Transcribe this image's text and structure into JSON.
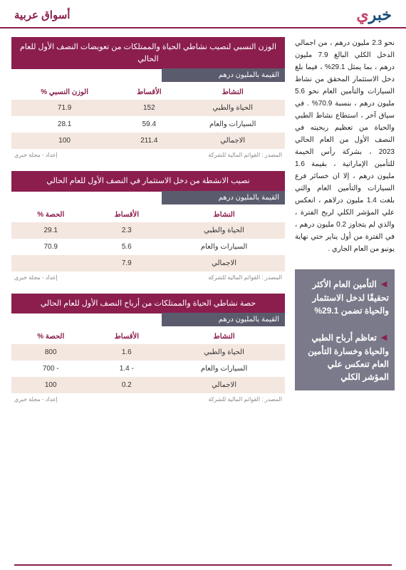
{
  "header": {
    "logo_main": "خبر",
    "logo_accent": "ي",
    "section": "أسواق عربية"
  },
  "body_text": "نحو 2.3 مليون درهم ، من اجمالي الدخل الكلي البالغ 7.9 مليون درهم ، بما يمثل 29.1% ، فيما بلغ دخل الاستثمار المحقق من نشاط السيارات والتأمين العام نحو 5.6 مليون درهم ، بنسبة 70.9% .\nفي سياق آخر ، استطاع نشاط الطبي والحياة من تعظيم ربحيته في النصف الأول من العام الحالي 2023 ، بشركة رأس الخيمة للتأمين الإماراتية ، بقيمة 1.6 مليون درهم ، إلا ان خسائر فرع السيارات والتأمين العام والتي بلغت 1.4 مليون درلاهم ، انعكس علي المؤشر الكلي لربح الفترة ، والذي لم يتجاوز 0.2 مليون درهم ، في الفترة من أول يناير حتي نهاية يونيو من العام الجاري .",
  "callouts": [
    "التأمين العام الأكثر تحقيقًا لدخل الاستثمار والحياة تضمن 29.1%",
    "تعاظم أرباح الطبي والحياة وخسارة التأمين العام تنعكس علي المؤشر الكلي"
  ],
  "tables": [
    {
      "title": "الوزن النسبي لنصيب نشاطي الحياة والممتلكات من تعويضات النصف الأول للعام الحالي",
      "subtitle": "القيمة بالمليون درهم",
      "columns": [
        "النشاط",
        "الأقساط",
        "الوزن النسبي %"
      ],
      "rows": [
        [
          "الحياة والطبي",
          "152",
          "71.9"
        ],
        [
          "السيارات والعام",
          "59.4",
          "28.1"
        ],
        [
          "الاجمالي",
          "211.4",
          "100"
        ]
      ],
      "source": "المصدر : القوائم المالية للشركة",
      "credit": "إعداد - مجلة خبري"
    },
    {
      "title": "نصيب الانشطة من دخل الاستثمار في النصف الأول للعام الحالي",
      "subtitle": "القيمة بالمليون درهم",
      "columns": [
        "النشاط",
        "الأقساط",
        "الحصة %"
      ],
      "rows": [
        [
          "الحياة والطبي",
          "2.3",
          "29.1"
        ],
        [
          "السيارات والعام",
          "5.6",
          "70.9"
        ],
        [
          "الاجمالي",
          "7.9",
          ""
        ]
      ],
      "source": "المصدر : القوائم المالية للشركة",
      "credit": "إعداد - مجلة خبري"
    },
    {
      "title": "حصة نشاطي الحياة والممتلكات من أرباح النصف الأول للعام الحالي",
      "subtitle": "القيمة بالمليون درهم",
      "columns": [
        "النشاط",
        "الأقساط",
        "الحصة %"
      ],
      "rows": [
        [
          "الحياة والطبي",
          "1.6",
          "800"
        ],
        [
          "السيارات والعام",
          "- 1.4",
          "- 700"
        ],
        [
          "الاجمالي",
          "0.2",
          "100"
        ]
      ],
      "source": "المصدر : القوائم المالية للشركة",
      "credit": "إعداد - مجلة خبري"
    }
  ],
  "colors": {
    "primary": "#8b1e4d",
    "secondary": "#5b5b6e",
    "callout_bg": "#7a7a8a",
    "row_alt": "#f4e7e0",
    "logo_blue": "#1a4d7a"
  }
}
